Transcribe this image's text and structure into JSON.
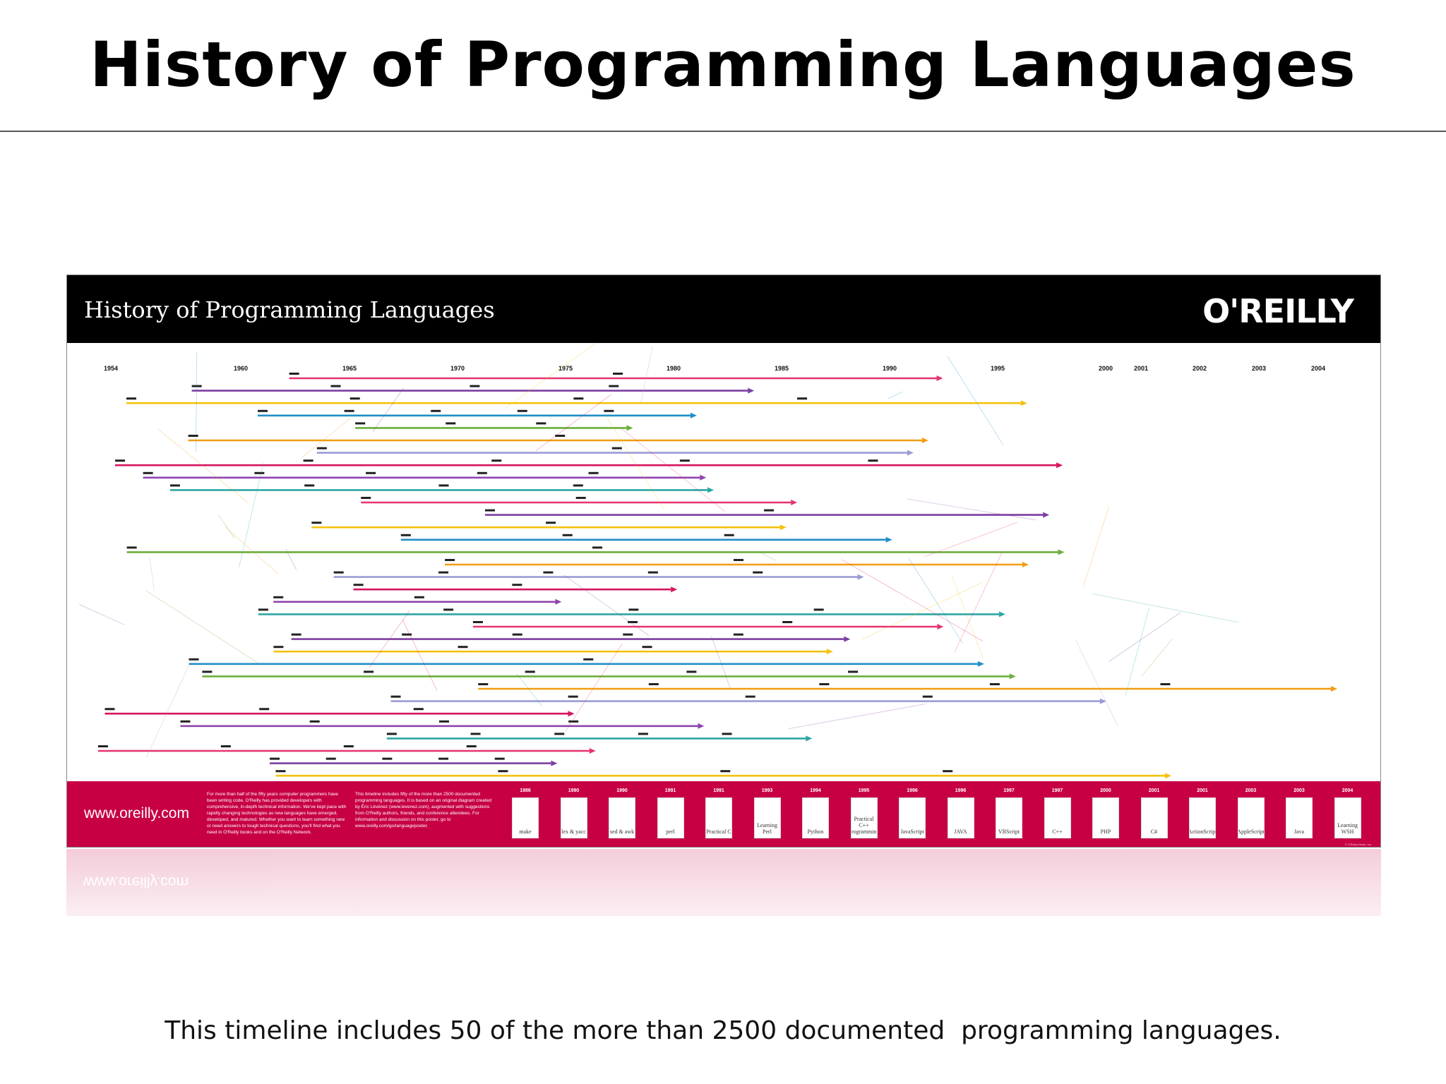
{
  "slide": {
    "title": "History of Programming Languages",
    "caption": "This timeline includes 50 of the more than 2500 documented  programming languages."
  },
  "poster": {
    "title": "History of Programming Languages",
    "publisher": "O'REILLY",
    "years": [
      "1954",
      "1960",
      "1965",
      "1970",
      "1975",
      "1980",
      "1985",
      "1990",
      "1995",
      "2000",
      "2001",
      "2002",
      "2003",
      "2004"
    ],
    "colors": {
      "header": "#000000",
      "footer": "#c70044"
    },
    "language_lines_approx": 33,
    "footer": {
      "url": "www.oreilly.com",
      "blurb_left": "For more than half of the fifty years computer programmers have been writing code, O'Reilly has provided developers with comprehensive, in-depth technical information. We've kept pace with rapidly changing technologies as new languages have emerged, developed, and matured. Whether you want to learn something new or need answers to tough technical questions, you'll find what you need in O'Reilly books and on the O'Reilly Network.",
      "blurb_right": "This timeline includes fifty of the more than 2500 documented programming languages. It is based on an original diagram created by Éric Lévénez (www.levenez.com), augmented with suggestions from O'Reilly authors, friends, and conference attendees. For information and discussion on this poster, go to www.oreilly.com/go/languageposter.",
      "books": [
        {
          "year": "1986",
          "title": "make"
        },
        {
          "year": "1990",
          "title": "lex & yacc"
        },
        {
          "year": "1990",
          "title": "sed & awk"
        },
        {
          "year": "1991",
          "title": "perl"
        },
        {
          "year": "1991",
          "title": "Practical C"
        },
        {
          "year": "1993",
          "title": "Learning Perl"
        },
        {
          "year": "1994",
          "title": "Python"
        },
        {
          "year": "1995",
          "title": "Practical C++ Programming"
        },
        {
          "year": "1996",
          "title": "JavaScript"
        },
        {
          "year": "1996",
          "title": "JAVA"
        },
        {
          "year": "1997",
          "title": "VBScript"
        },
        {
          "year": "1997",
          "title": "C++"
        },
        {
          "year": "2000",
          "title": "PHP"
        },
        {
          "year": "2001",
          "title": "C#"
        },
        {
          "year": "2001",
          "title": "ActionScript"
        },
        {
          "year": "2003",
          "title": "AppleScript"
        },
        {
          "year": "2003",
          "title": "Java"
        },
        {
          "year": "2004",
          "title": "Learning WSH"
        }
      ]
    }
  }
}
